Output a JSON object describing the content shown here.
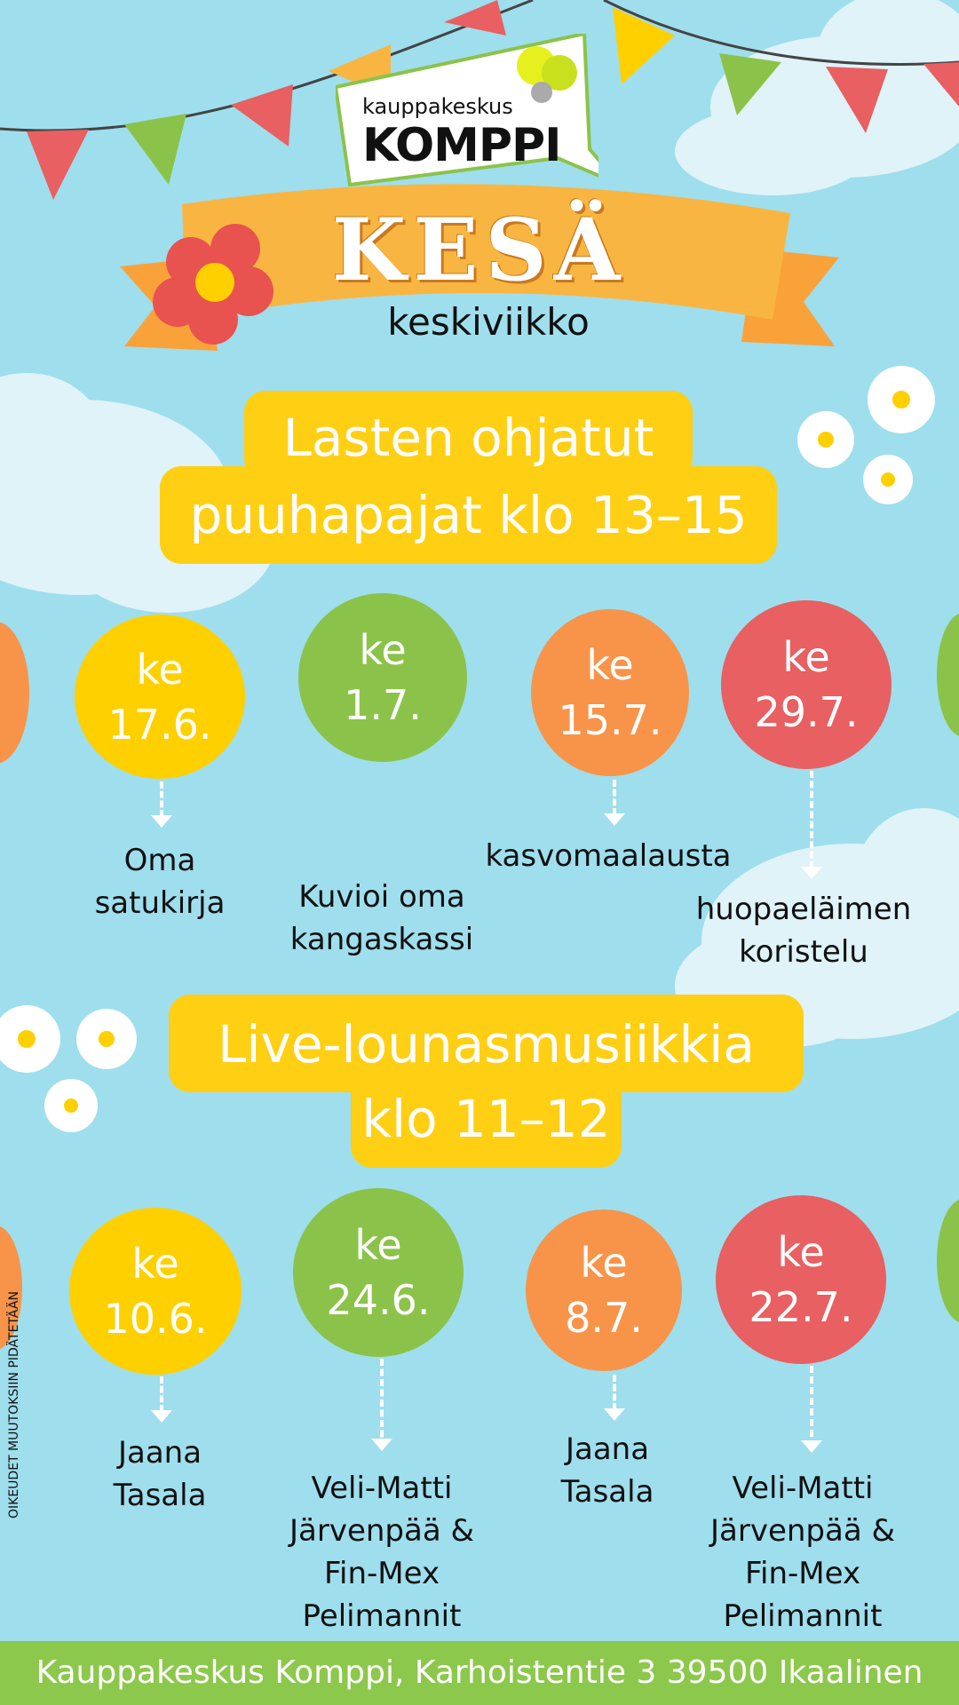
{
  "logo": {
    "small": "kauppakeskus",
    "big": "KOMPPI"
  },
  "banner_title": "KESÄ",
  "weekday": "keskiviikko",
  "workshops": {
    "title_line1": "Lasten ohjatut",
    "title_line2": "puuhapajat klo 13–15",
    "events": [
      {
        "day": "ke",
        "date": "17.6.",
        "activity_lines": [
          "Oma",
          "satukirja"
        ],
        "color": "#ffd000"
      },
      {
        "day": "ke",
        "date": "1.7.",
        "activity_lines": [
          "Kuvioi oma",
          "kangaskassi"
        ],
        "color": "#8bc34a"
      },
      {
        "day": "ke",
        "date": "15.7.",
        "activity_lines": [
          "kasvomaalausta"
        ],
        "color": "#f7944a"
      },
      {
        "day": "ke",
        "date": "29.7.",
        "activity_lines": [
          "huopaeläimen",
          "koristelu"
        ],
        "color": "#e86061"
      }
    ]
  },
  "music": {
    "title_line1": "Live-lounasmusiikkia",
    "title_line2": "klo 11–12",
    "events": [
      {
        "day": "ke",
        "date": "10.6.",
        "performer_lines": [
          "Jaana",
          "Tasala"
        ],
        "color": "#ffd000"
      },
      {
        "day": "ke",
        "date": "24.6.",
        "performer_lines": [
          "Veli-Matti",
          "Järvenpää &",
          "Fin-Mex",
          "Pelimannit"
        ],
        "color": "#8bc34a"
      },
      {
        "day": "ke",
        "date": "8.7.",
        "performer_lines": [
          "Jaana",
          "Tasala"
        ],
        "color": "#f7944a"
      },
      {
        "day": "ke",
        "date": "22.7.",
        "performer_lines": [
          "Veli-Matti",
          "Järvenpää &",
          "Fin-Mex",
          "Pelimannit"
        ],
        "color": "#e86061"
      }
    ]
  },
  "side_note": "OIKEUDET MUUTOKSIIN PIDÄTETÄÄN",
  "footer": "Kauppakeskus Komppi, Karhoistentie 3 39500 Ikaalinen",
  "colors": {
    "background": "#9fdeed",
    "yellow": "#ffd000",
    "green": "#8bc34a",
    "orange": "#f7944a",
    "red": "#e86061",
    "ribbon": "#f9b541"
  }
}
